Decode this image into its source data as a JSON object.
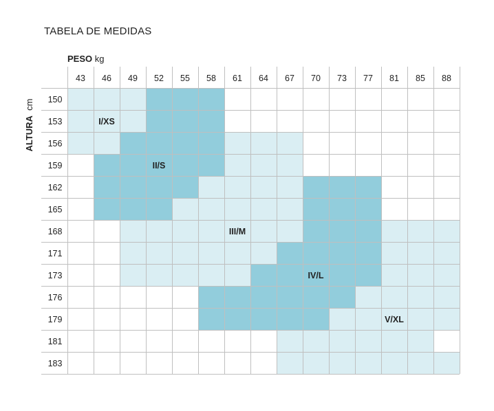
{
  "chart_data": {
    "type": "heatmap",
    "title": "TABELA DE MEDIDAS",
    "xlabel": "PESO",
    "xunit": "kg",
    "ylabel": "ALTURA",
    "yunit": "cm",
    "x": [
      "43",
      "46",
      "49",
      "52",
      "55",
      "58",
      "61",
      "64",
      "67",
      "70",
      "73",
      "77",
      "81",
      "85",
      "88"
    ],
    "y": [
      "150",
      "153",
      "156",
      "159",
      "162",
      "165",
      "168",
      "171",
      "173",
      "176",
      "179",
      "181",
      "183"
    ],
    "sizes": [
      {
        "name": "I/XS",
        "shade": "light"
      },
      {
        "name": "II/S",
        "shade": "dark"
      },
      {
        "name": "III/M",
        "shade": "light"
      },
      {
        "name": "IV/L",
        "shade": "dark"
      },
      {
        "name": "V/XL",
        "shade": "light"
      }
    ],
    "cells": [
      [
        1,
        1,
        1,
        2,
        2,
        2,
        0,
        0,
        0,
        0,
        0,
        0,
        0,
        0,
        0
      ],
      [
        1,
        1,
        1,
        2,
        2,
        2,
        0,
        0,
        0,
        0,
        0,
        0,
        0,
        0,
        0
      ],
      [
        1,
        1,
        2,
        2,
        2,
        2,
        3,
        3,
        3,
        0,
        0,
        0,
        0,
        0,
        0
      ],
      [
        0,
        2,
        2,
        2,
        2,
        2,
        3,
        3,
        3,
        0,
        0,
        0,
        0,
        0,
        0
      ],
      [
        0,
        2,
        2,
        2,
        2,
        3,
        3,
        3,
        3,
        4,
        4,
        4,
        0,
        0,
        0
      ],
      [
        0,
        2,
        2,
        2,
        3,
        3,
        3,
        3,
        3,
        4,
        4,
        4,
        0,
        0,
        0
      ],
      [
        0,
        0,
        3,
        3,
        3,
        3,
        3,
        3,
        3,
        4,
        4,
        4,
        5,
        5,
        5
      ],
      [
        0,
        0,
        3,
        3,
        3,
        3,
        3,
        3,
        4,
        4,
        4,
        4,
        5,
        5,
        5
      ],
      [
        0,
        0,
        3,
        3,
        3,
        3,
        3,
        4,
        4,
        4,
        4,
        4,
        5,
        5,
        5
      ],
      [
        0,
        0,
        0,
        0,
        0,
        4,
        4,
        4,
        4,
        4,
        4,
        5,
        5,
        5,
        5
      ],
      [
        0,
        0,
        0,
        0,
        0,
        4,
        4,
        4,
        4,
        4,
        5,
        5,
        5,
        5,
        5
      ],
      [
        0,
        0,
        0,
        0,
        0,
        0,
        0,
        0,
        5,
        5,
        5,
        5,
        5,
        5,
        0
      ],
      [
        0,
        0,
        0,
        0,
        0,
        0,
        0,
        0,
        5,
        5,
        5,
        5,
        5,
        5,
        5
      ]
    ],
    "labels": [
      {
        "text": "I/XS",
        "row": 1,
        "col": 1
      },
      {
        "text": "II/S",
        "row": 3,
        "col": 3
      },
      {
        "text": "III/M",
        "row": 6,
        "col": 6
      },
      {
        "text": "IV/L",
        "row": 8,
        "col": 9
      },
      {
        "text": "V/XL",
        "row": 10,
        "col": 12
      }
    ],
    "grid": true
  },
  "colors": {
    "light": "#daeef3",
    "dark": "#92cddc",
    "empty": "#ffffff",
    "gridline": "#bfbfbf"
  }
}
